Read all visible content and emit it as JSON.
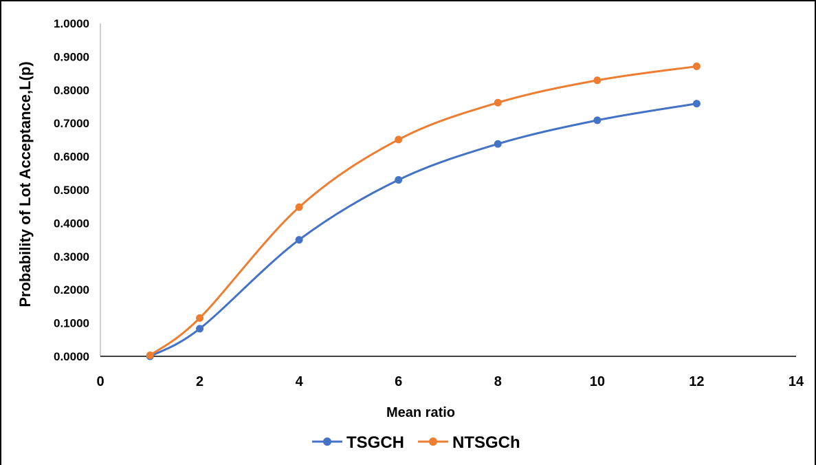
{
  "chart_data": {
    "type": "line",
    "title": "",
    "xlabel": "Mean ratio",
    "ylabel": "Probability of Lot Acceptance,L(p)",
    "xlim": [
      0,
      14
    ],
    "ylim": [
      0,
      1.0
    ],
    "x_ticks": [
      "0",
      "2",
      "4",
      "6",
      "8",
      "10",
      "12",
      "14"
    ],
    "y_ticks": [
      "0.0000",
      "0.1000",
      "0.2000",
      "0.3000",
      "0.4000",
      "0.5000",
      "0.6000",
      "0.7000",
      "0.8000",
      "0.9000",
      "1.0000"
    ],
    "grid": false,
    "smooth": true,
    "legend_position": "bottom",
    "x": [
      1,
      2,
      4,
      6,
      8,
      10,
      12
    ],
    "series": [
      {
        "name": "TSGCH",
        "color": "#4472C4",
        "values": [
          0.0,
          0.083,
          0.35,
          0.53,
          0.638,
          0.709,
          0.759
        ]
      },
      {
        "name": "NTSGCh",
        "color": "#ED7D31",
        "values": [
          0.003,
          0.115,
          0.448,
          0.651,
          0.762,
          0.829,
          0.871
        ]
      }
    ]
  }
}
